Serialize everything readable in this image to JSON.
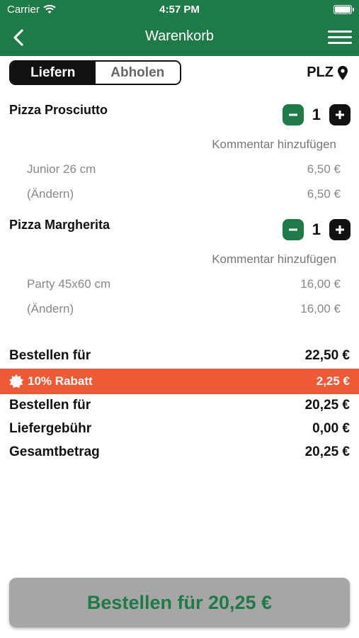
{
  "status_bar": {
    "carrier": "Carrier",
    "time": "4:57 PM"
  },
  "header": {
    "title": "Warenkorb"
  },
  "delivery_toggle": {
    "deliver": "Liefern",
    "pickup": "Abholen",
    "selected": "Liefern"
  },
  "plz": {
    "label": "PLZ"
  },
  "cart": {
    "items": [
      {
        "name": "Pizza Prosciutto",
        "quantity": "1",
        "comment": "Kommentar hinzufügen",
        "size": "Junior 26 cm",
        "size_price": "6,50 €",
        "change": "(Ändern)",
        "change_price": "6,50 €"
      },
      {
        "name": "Pizza Margherita",
        "quantity": "1",
        "comment": "Kommentar hinzufügen",
        "size": "Party 45x60 cm",
        "size_price": "16,00 €",
        "change": "(Ändern)",
        "change_price": "16,00 €"
      }
    ]
  },
  "totals": {
    "subtotal_label": "Bestellen für",
    "subtotal": "22,50 €",
    "discount_label": "10% Rabatt",
    "discount": "2,25 €",
    "after_discount_label": "Bestellen für",
    "after_discount": "20,25 €",
    "delivery_fee_label": "Liefergebühr",
    "delivery_fee": "0,00 €",
    "total_label": "Gesamtbetrag",
    "total": "20,25 €"
  },
  "order_button": {
    "label": "Bestellen für 20,25 €"
  },
  "colors": {
    "brand_green": "#1e7a46",
    "discount_orange": "#ef5a36",
    "button_gray": "#a6a6a6"
  },
  "icons": [
    "wifi-icon",
    "battery-icon",
    "back-chevron-icon",
    "hamburger-menu-icon",
    "location-pin-icon",
    "minus-icon",
    "plus-icon",
    "discount-badge-icon"
  ]
}
